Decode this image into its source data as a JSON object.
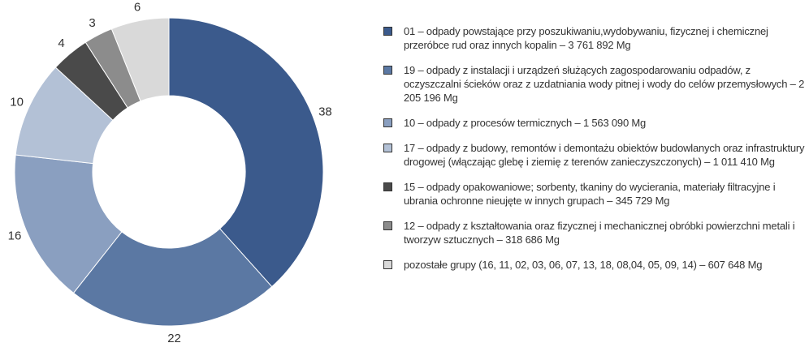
{
  "chart_data": {
    "type": "donut",
    "categories": [
      "01 – odpady powstające przy poszukiwaniu,wydobywaniu, fizycznej i chemicznej przeróbce rud oraz innych kopalin – 3 761 892 Mg",
      "19 – odpady z instalacji i urządzeń służących zagospodarowaniu odpadów, z oczyszczalni ścieków oraz z uzdatniania wody pitnej i wody do celów przemysłowych – 2 205 196 Mg",
      "10 – odpady z procesów termicznych – 1 563 090 Mg",
      "17 – odpady z budowy, remontów i demontażu obiektów budowlanych oraz infrastruktury drogowej (włączając glebę i ziemię z terenów zanieczyszczonych) – 1 011 410 Mg",
      "15 – odpady opakowaniowe; sorbenty, tkaniny do wycierania, materiały filtracyjne i ubrania ochronne nieujęte w innych grupach – 345 729 Mg",
      "12 – odpady z kształtowania oraz fizycznej i mechanicznej obróbki powierzchni metali i tworzyw sztucznych – 318 686 Mg",
      "pozostałe grupy (16, 11, 02, 03, 06, 07, 13, 18, 08,04, 05, 09, 14) – 607 648 Mg"
    ],
    "values": [
      38,
      22,
      16,
      10,
      4,
      3,
      6
    ],
    "colors": [
      "#3b5a8c",
      "#5b78a3",
      "#8a9fc0",
      "#b3c1d6",
      "#4a4a4a",
      "#8c8c8c",
      "#d9d9d9"
    ]
  }
}
